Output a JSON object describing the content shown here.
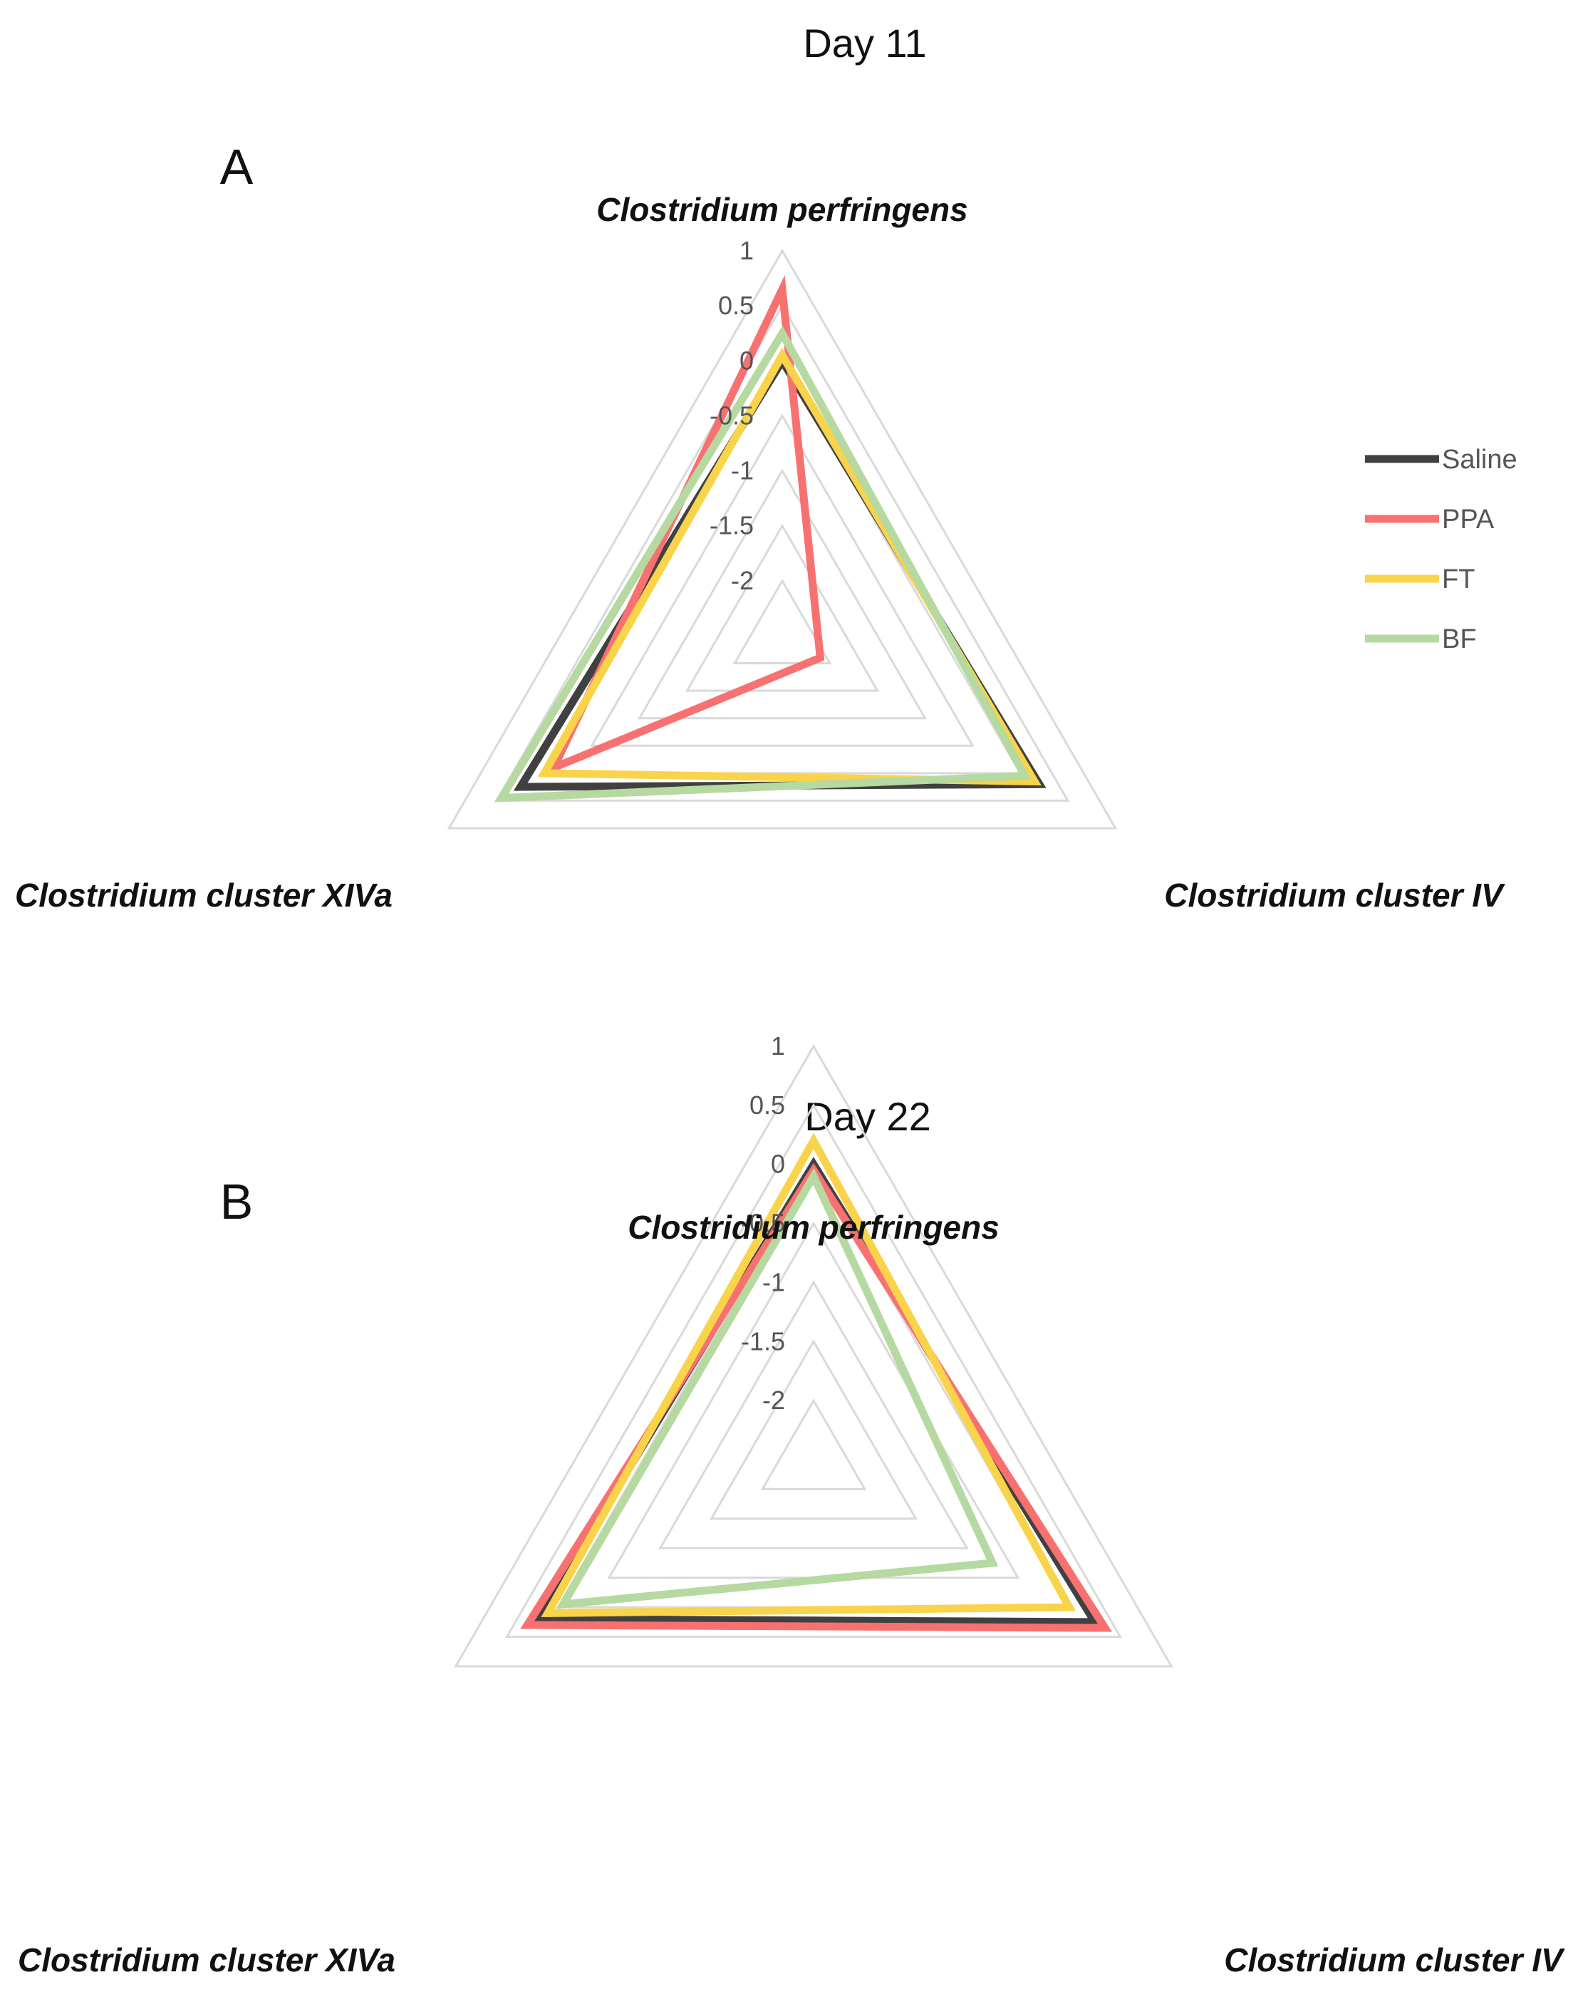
{
  "legend": {
    "items": [
      {
        "name": "Saline",
        "color": "#404040"
      },
      {
        "name": "PPA",
        "color": "#f87171"
      },
      {
        "name": "FT",
        "color": "#f9d34a"
      },
      {
        "name": "BF",
        "color": "#b5d9a0"
      }
    ]
  },
  "chart_data": [
    {
      "type": "radar",
      "title": "Day 11",
      "panel": "A",
      "axes": [
        "Clostridium perfringens",
        "Clostridium cluster IV",
        "Clostridium cluster XIVa"
      ],
      "ticks": [
        "1",
        "0.5",
        "0",
        "-0.5",
        "-1",
        "-1.5",
        "-2"
      ],
      "range": [
        -2.5,
        1
      ],
      "grid": true,
      "legend_position": "right",
      "series": [
        {
          "name": "Saline",
          "values": [
            0.0,
            0.2,
            0.25
          ]
        },
        {
          "name": "PPA",
          "values": [
            0.65,
            -2.1,
            -0.1
          ]
        },
        {
          "name": "FT",
          "values": [
            0.05,
            0.15,
            0.0
          ]
        },
        {
          "name": "BF",
          "values": [
            0.25,
            0.05,
            0.45
          ]
        }
      ]
    },
    {
      "type": "radar",
      "title": "Day 22",
      "panel": "B",
      "axes": [
        "Clostridium perfringens",
        "Clostridium cluster IV",
        "Clostridium cluster XIVa"
      ],
      "ticks": [
        "1",
        "0.5",
        "0",
        "-0.5",
        "-1",
        "-1.5",
        "-2"
      ],
      "range": [
        -2.5,
        1
      ],
      "grid": true,
      "legend_position": "none",
      "series": [
        {
          "name": "Saline",
          "values": [
            0.0,
            0.25,
            0.2
          ]
        },
        {
          "name": "PPA",
          "values": [
            -0.05,
            0.35,
            0.3
          ]
        },
        {
          "name": "FT",
          "values": [
            0.2,
            0.0,
            0.1
          ]
        },
        {
          "name": "BF",
          "values": [
            -0.1,
            -0.75,
            -0.05
          ]
        }
      ]
    }
  ]
}
